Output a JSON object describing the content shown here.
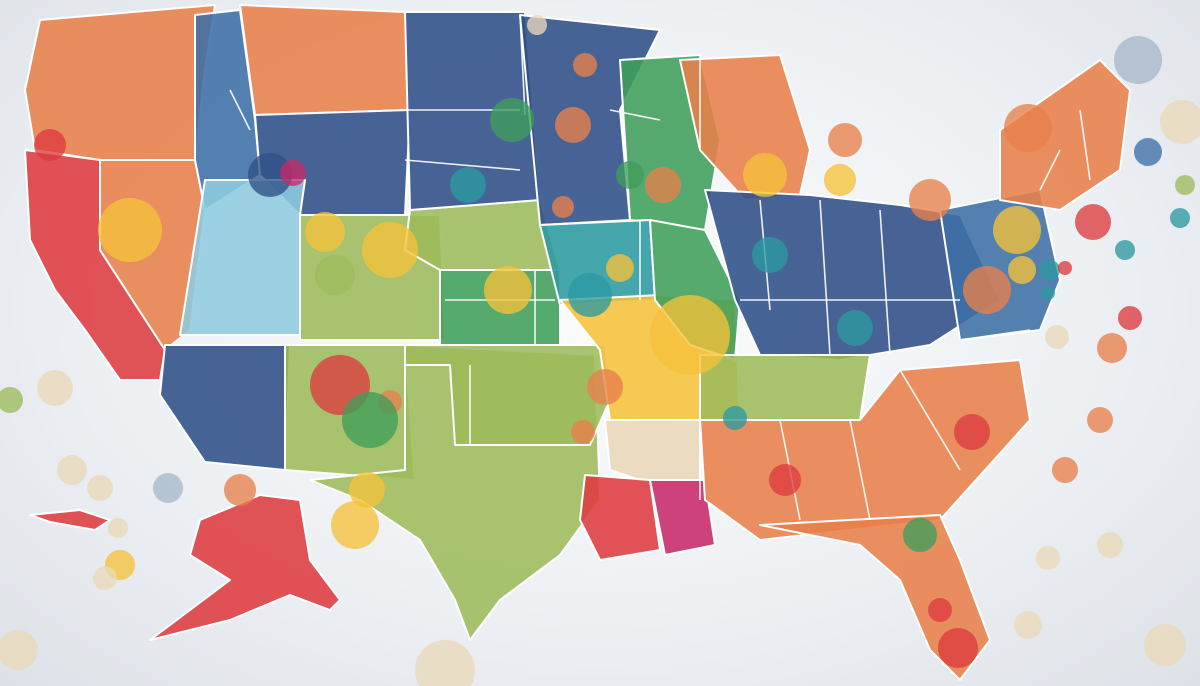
{
  "palette": {
    "background": "#eef1f4",
    "orange": "#e8804a",
    "red": "#dd3b3f",
    "yellow": "#f5c23a",
    "green": "#3f9e5a",
    "lime": "#9dbb5b",
    "teal": "#2b9aa0",
    "blue": "#3d6fa6",
    "navy": "#2f4f88",
    "light_blue": "#8ecbe0",
    "magenta": "#c8296a",
    "cream": "#e9d8b8",
    "grey_blue": "#a6b7c9"
  },
  "map": {
    "subject": "United States",
    "style": "colorful choropleth with overlaid circles",
    "regions": [
      {
        "name": "pacific-northwest",
        "color": "orange"
      },
      {
        "name": "california",
        "color": "red"
      },
      {
        "name": "nevada",
        "color": "orange"
      },
      {
        "name": "idaho",
        "color": "blue"
      },
      {
        "name": "montana",
        "color": "orange"
      },
      {
        "name": "wyoming",
        "color": "navy"
      },
      {
        "name": "utah",
        "color": "light_blue"
      },
      {
        "name": "colorado",
        "color": "lime"
      },
      {
        "name": "arizona",
        "color": "navy"
      },
      {
        "name": "new-mexico",
        "color": "lime"
      },
      {
        "name": "texas",
        "color": "lime"
      },
      {
        "name": "oklahoma",
        "color": "lime"
      },
      {
        "name": "kansas",
        "color": "green"
      },
      {
        "name": "nebraska",
        "color": "lime"
      },
      {
        "name": "dakotas",
        "color": "navy"
      },
      {
        "name": "minnesota",
        "color": "navy"
      },
      {
        "name": "wisconsin",
        "color": "green"
      },
      {
        "name": "michigan",
        "color": "orange"
      },
      {
        "name": "iowa",
        "color": "teal"
      },
      {
        "name": "missouri",
        "color": "yellow"
      },
      {
        "name": "illinois",
        "color": "green"
      },
      {
        "name": "ohio-valley",
        "color": "navy"
      },
      {
        "name": "arkansas",
        "color": "cream"
      },
      {
        "name": "louisiana",
        "color": "red"
      },
      {
        "name": "mississippi",
        "color": "magenta"
      },
      {
        "name": "tennessee",
        "color": "lime"
      },
      {
        "name": "southeast",
        "color": "orange"
      },
      {
        "name": "florida",
        "color": "orange"
      },
      {
        "name": "mid-atlantic",
        "color": "blue"
      },
      {
        "name": "new-england",
        "color": "orange"
      },
      {
        "name": "alaska",
        "color": "red"
      },
      {
        "name": "hawaii",
        "color": "red"
      }
    ],
    "circle_count": 72,
    "circle_colors": [
      "orange",
      "red",
      "yellow",
      "green",
      "teal",
      "blue",
      "lime",
      "cream"
    ]
  }
}
